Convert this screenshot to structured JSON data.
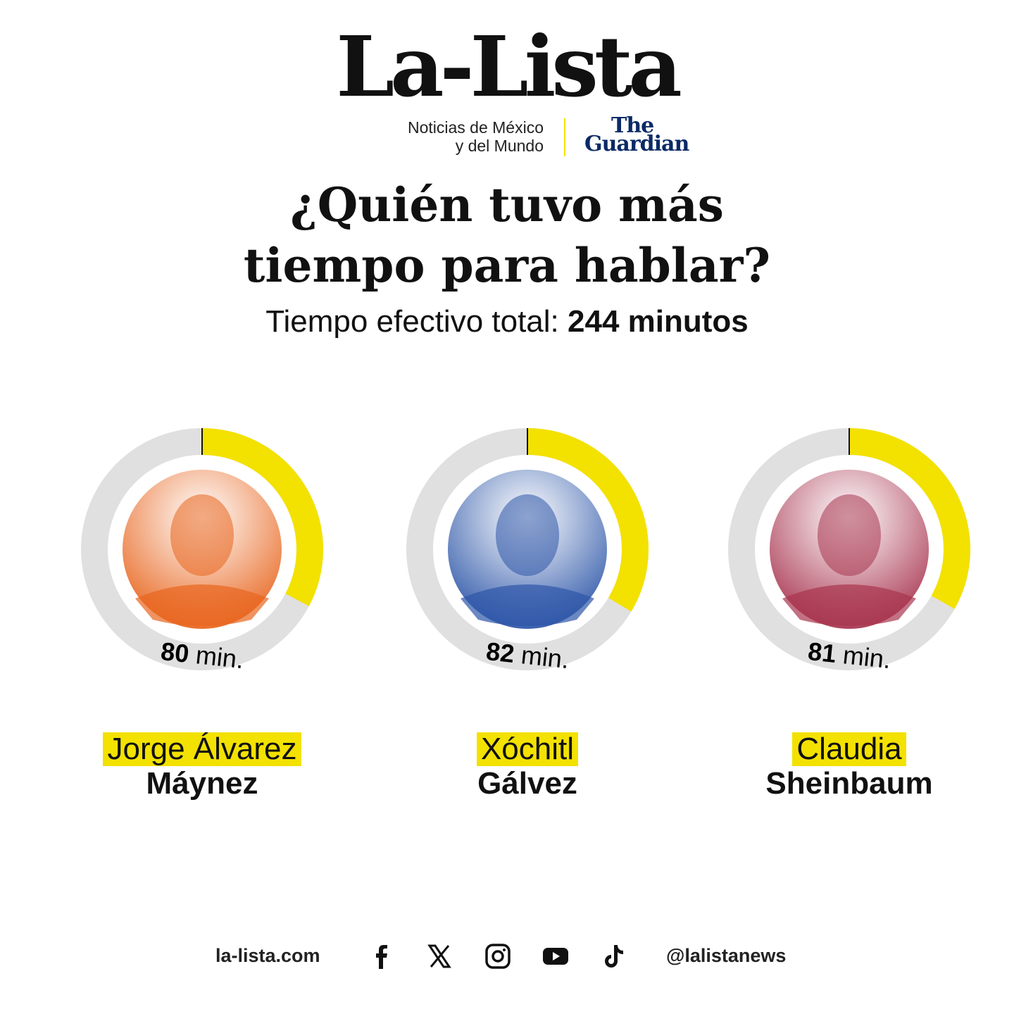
{
  "brand": {
    "logo": "La-Lista",
    "tagline_line1": "Noticias de México",
    "tagline_line2": "y del Mundo",
    "partner_line1": "The",
    "partner_line2": "Guardian"
  },
  "header": {
    "title_line1": "¿Quién tuvo más",
    "title_line2": "tiempo para hablar?",
    "subtitle_prefix": "Tiempo efectivo total: ",
    "subtitle_value": "244 minutos"
  },
  "colors": {
    "accent": "#f3e100",
    "track": "#e0e0e0",
    "text": "#111111",
    "guardian": "#0a2a66"
  },
  "chart_data": {
    "type": "donut",
    "total": 244,
    "unit": "min.",
    "series": [
      {
        "first_name": "Jorge Álvarez",
        "last_name": "Máynez",
        "value": 80,
        "label_num": "80",
        "photo_tint": "#e8651e"
      },
      {
        "first_name": "Xóchitl",
        "last_name": "Gálvez",
        "value": 82,
        "label_num": "82",
        "photo_tint": "#2d56a8"
      },
      {
        "first_name": "Claudia",
        "last_name": "Sheinbaum",
        "value": 81,
        "label_num": "81",
        "photo_tint": "#a8344f"
      }
    ]
  },
  "footer": {
    "website": "la-lista.com",
    "handle": "@lalistanews",
    "icons": [
      "facebook-icon",
      "x-icon",
      "instagram-icon",
      "youtube-icon",
      "tiktok-icon"
    ]
  }
}
